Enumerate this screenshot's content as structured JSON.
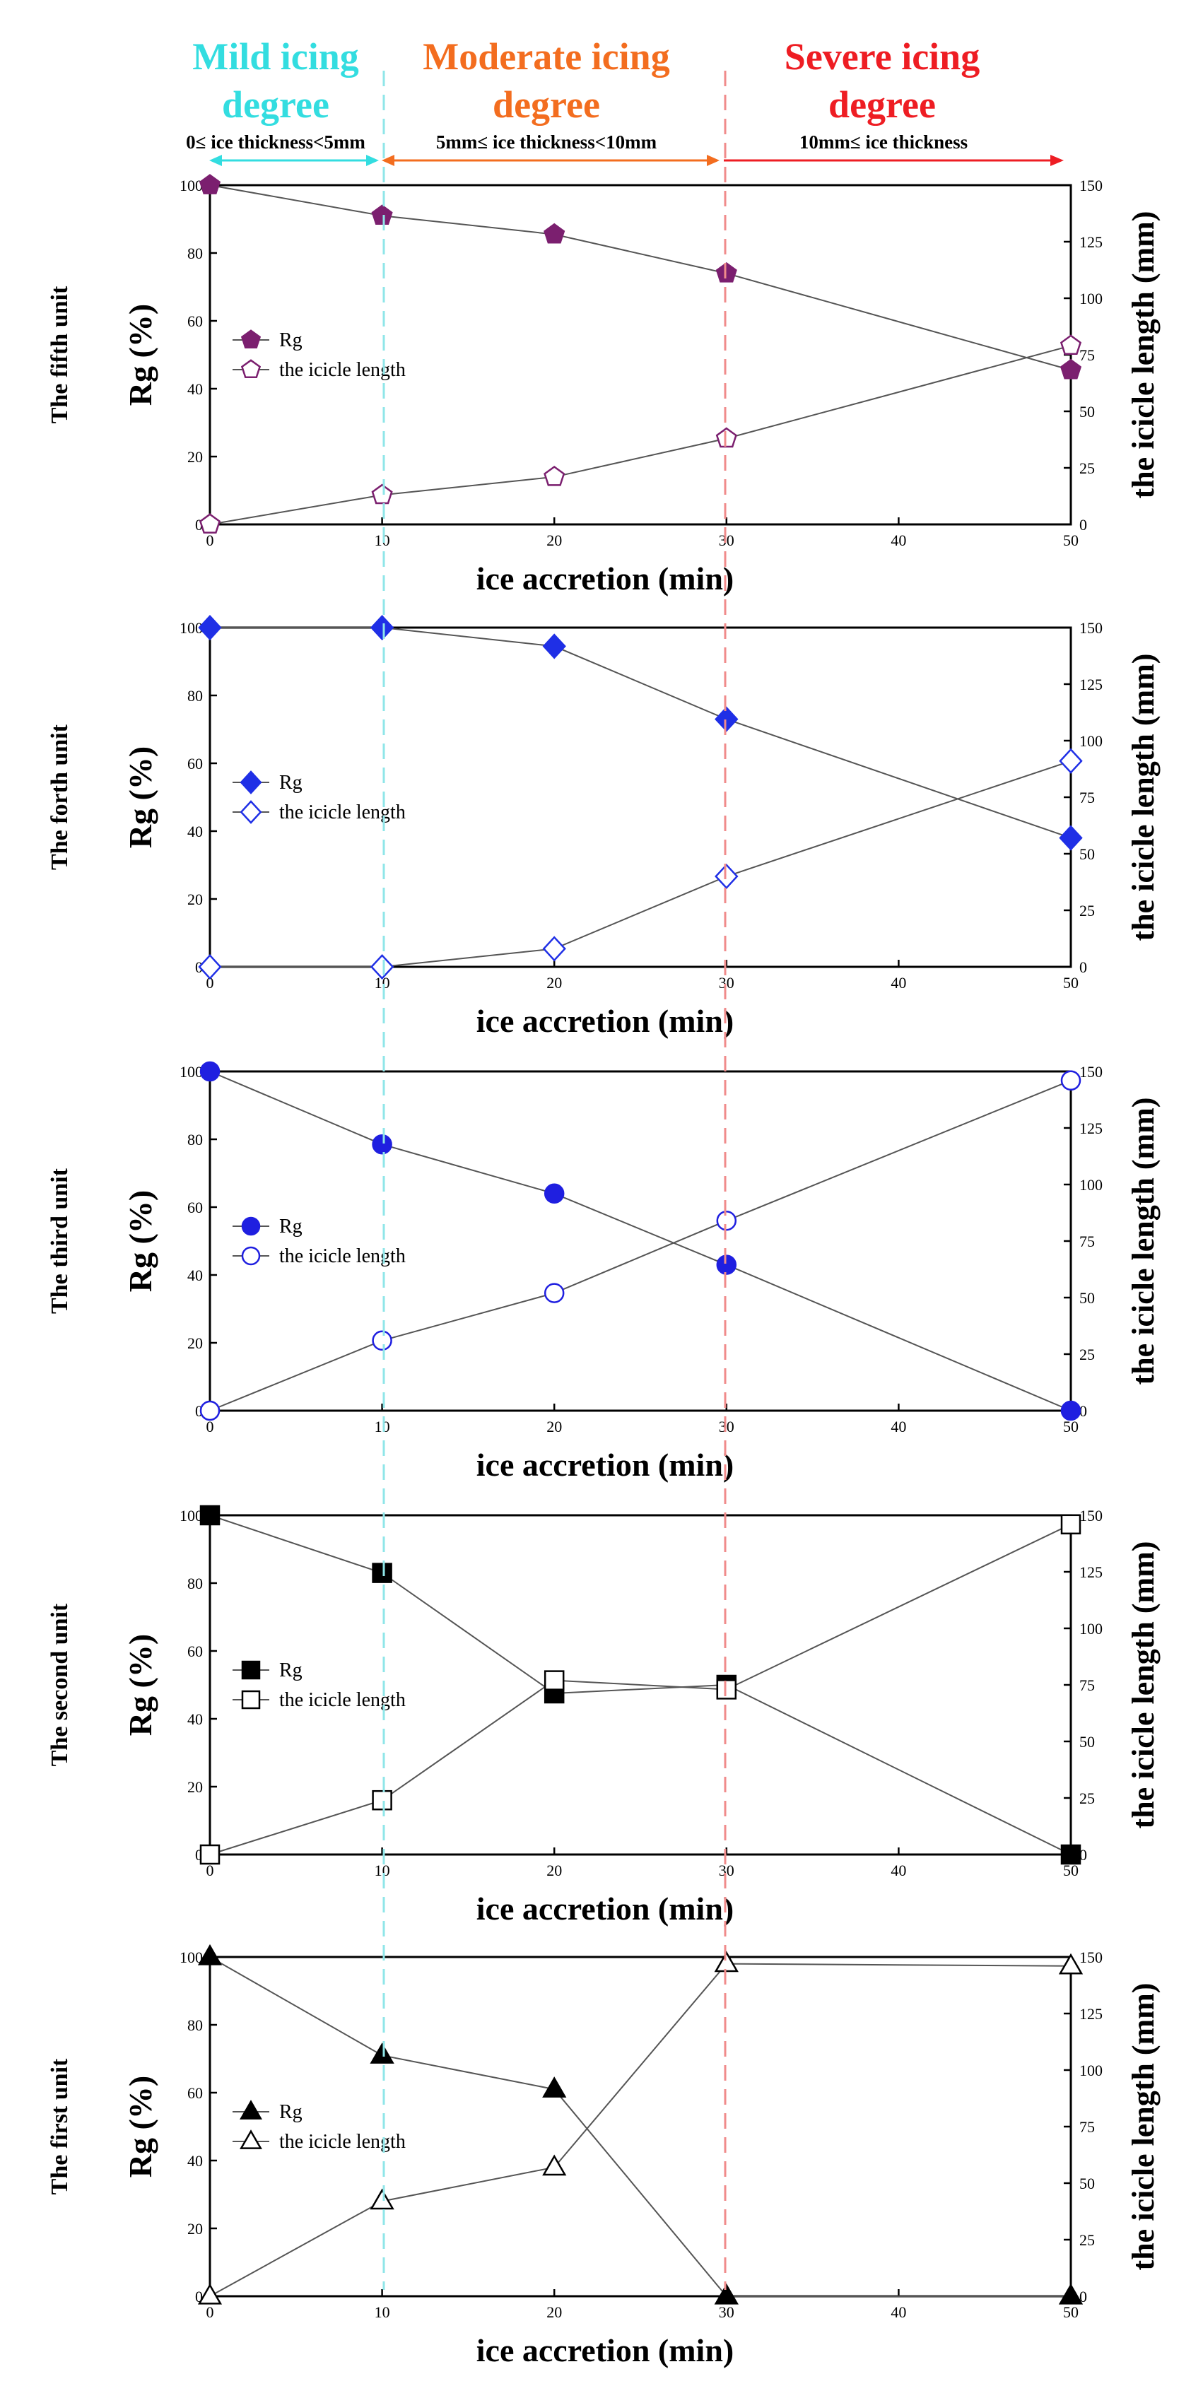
{
  "header": {
    "mild": {
      "title_line1": "Mild icing",
      "title_line2": "degree",
      "range": "0≤ ice thickness<5mm",
      "color": "#33dde0"
    },
    "moderate": {
      "title_line1": "Moderate icing",
      "title_line2": "degree",
      "range": "5mm≤ ice thickness<10mm",
      "color": "#f36d1f"
    },
    "severe": {
      "title_line1": "Severe icing",
      "title_line2": "degree",
      "range": "10mm≤ ice thickness",
      "color": "#ee1d23"
    }
  },
  "colors": {
    "axis": "#000000",
    "line": "#555555",
    "mild_divider": "#8fe6e8",
    "severe_divider": "#f08b8b"
  },
  "chart_data": [
    {
      "type": "line",
      "unit_label": "The fifth unit",
      "xlabel": "ice accretion (min)",
      "ylabel": "Rg (%)",
      "y2label": "the icicle length (mm)",
      "x": [
        0,
        10,
        20,
        30,
        50
      ],
      "xticks": [
        0,
        10,
        20,
        30,
        40,
        50
      ],
      "xlim": [
        0,
        50
      ],
      "ylim": [
        0,
        100
      ],
      "yticks": [
        0,
        20,
        40,
        60,
        80,
        100
      ],
      "y2lim": [
        0,
        150
      ],
      "y2ticks": [
        0,
        25,
        50,
        75,
        100,
        125,
        150
      ],
      "marker": "pentagon",
      "color": "#7b1f6f",
      "legend_position": "center-left",
      "series": [
        {
          "name": "Rg",
          "axis": "left",
          "filled": true,
          "values": [
            100,
            91,
            85.5,
            74,
            45.5
          ]
        },
        {
          "name": "the icicle length",
          "axis": "right",
          "filled": false,
          "values": [
            0,
            13,
            21,
            38,
            79
          ]
        }
      ]
    },
    {
      "type": "line",
      "unit_label": "The forth unit",
      "xlabel": "ice accretion (min)",
      "ylabel": "Rg (%)",
      "y2label": "the icicle length (mm)",
      "x": [
        0,
        10,
        20,
        30,
        50
      ],
      "xticks": [
        0,
        10,
        20,
        30,
        40,
        50
      ],
      "xlim": [
        0,
        50
      ],
      "ylim": [
        0,
        100
      ],
      "yticks": [
        0,
        20,
        40,
        60,
        80,
        100
      ],
      "y2lim": [
        0,
        150
      ],
      "y2ticks": [
        0,
        25,
        50,
        75,
        100,
        125,
        150
      ],
      "marker": "diamond",
      "color": "#1f2fe6",
      "legend_position": "center-left",
      "series": [
        {
          "name": "Rg",
          "axis": "left",
          "filled": true,
          "values": [
            100,
            100,
            94.5,
            73,
            38
          ]
        },
        {
          "name": "the icicle length",
          "axis": "right",
          "filled": false,
          "values": [
            0,
            0,
            8,
            40,
            91
          ]
        }
      ]
    },
    {
      "type": "line",
      "unit_label": "The  third unit",
      "xlabel": "ice accretion (min)",
      "ylabel": "Rg (%)",
      "y2label": "the icicle length (mm)",
      "x": [
        0,
        10,
        20,
        30,
        50
      ],
      "xticks": [
        0,
        10,
        20,
        30,
        40,
        50
      ],
      "xlim": [
        0,
        50
      ],
      "ylim": [
        0,
        100
      ],
      "yticks": [
        0,
        20,
        40,
        60,
        80,
        100
      ],
      "y2lim": [
        0,
        150
      ],
      "y2ticks": [
        0,
        25,
        50,
        75,
        100,
        125,
        150
      ],
      "marker": "circle",
      "color": "#1f1fe0",
      "legend_position": "center-left",
      "series": [
        {
          "name": "Rg",
          "axis": "left",
          "filled": true,
          "values": [
            100,
            78.5,
            64,
            43,
            0
          ]
        },
        {
          "name": "the icicle length",
          "axis": "right",
          "filled": false,
          "values": [
            0,
            31,
            52,
            84,
            146
          ]
        }
      ]
    },
    {
      "type": "line",
      "unit_label": "The second unit",
      "xlabel": "ice accretion (min)",
      "ylabel": "Rg (%)",
      "y2label": "the icicle length (mm)",
      "x": [
        0,
        10,
        20,
        30,
        50
      ],
      "xticks": [
        0,
        10,
        20,
        30,
        40,
        50
      ],
      "xlim": [
        0,
        50
      ],
      "ylim": [
        0,
        100
      ],
      "yticks": [
        0,
        20,
        40,
        60,
        80,
        100
      ],
      "y2lim": [
        0,
        150
      ],
      "y2ticks": [
        0,
        25,
        50,
        75,
        100,
        125,
        150
      ],
      "marker": "square",
      "color": "#000000",
      "legend_position": "center-left",
      "series": [
        {
          "name": "Rg",
          "axis": "left",
          "filled": true,
          "values": [
            100,
            83,
            47.5,
            50,
            0
          ]
        },
        {
          "name": "the icicle length",
          "axis": "right",
          "filled": false,
          "values": [
            0,
            24,
            77,
            73,
            146
          ]
        }
      ]
    },
    {
      "type": "line",
      "unit_label": "The first unit",
      "xlabel": "ice accretion (min)",
      "ylabel": "Rg (%)",
      "y2label": "the icicle length (mm)",
      "x": [
        0,
        10,
        20,
        30,
        50
      ],
      "xticks": [
        0,
        10,
        20,
        30,
        40,
        50
      ],
      "xlim": [
        0,
        50
      ],
      "ylim": [
        0,
        100
      ],
      "yticks": [
        0,
        20,
        40,
        60,
        80,
        100
      ],
      "y2lim": [
        0,
        150
      ],
      "y2ticks": [
        0,
        25,
        50,
        75,
        100,
        125,
        150
      ],
      "marker": "triangle",
      "color": "#000000",
      "legend_position": "center-left",
      "series": [
        {
          "name": "Rg",
          "axis": "left",
          "filled": true,
          "values": [
            100,
            71,
            61,
            0,
            0
          ]
        },
        {
          "name": "the icicle length",
          "axis": "right",
          "filled": false,
          "values": [
            0,
            42,
            57,
            147,
            146
          ]
        }
      ]
    }
  ]
}
